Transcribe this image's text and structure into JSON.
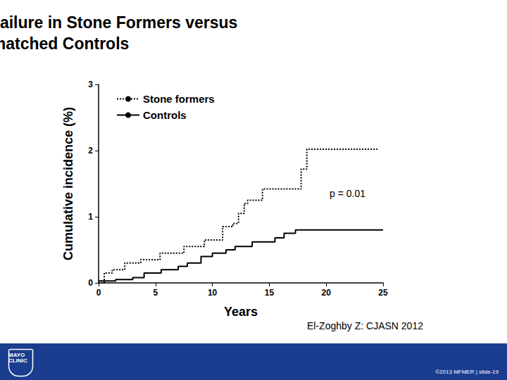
{
  "chart_data": {
    "type": "line",
    "title": "Incidence of Renal Failure in Stone Formers versus Age-matched Controls",
    "x_label": "Years",
    "y_label": "Cumulative incidence (%)",
    "annotations": [
      "p = 0.01",
      "El-Zoghby Z: CJASN 2012"
    ],
    "footer": [
      "MAYO CLINIC",
      "©2013 MFMER | slide-19"
    ],
    "series": [
      {
        "name": "Stone formers",
        "color": "#000000",
        "line_style": "dotted",
        "x": [
          0,
          0.5,
          1.2,
          2.3,
          3.7,
          5.4,
          7.5,
          9.3,
          10.9,
          11.8,
          12.3,
          12.8,
          13.1,
          14.4,
          17.8,
          18.3,
          24.5
        ],
        "values": [
          0,
          0.15,
          0.2,
          0.3,
          0.35,
          0.45,
          0.55,
          0.65,
          0.85,
          0.9,
          1.05,
          1.2,
          1.25,
          1.42,
          1.72,
          2.02,
          2.02
        ]
      },
      {
        "name": "Controls",
        "color": "#000000",
        "line_style": "solid",
        "x": [
          0,
          1.5,
          3,
          4,
          5.5,
          7,
          7.8,
          9,
          10,
          11.2,
          12,
          13.5,
          15.5,
          16.3,
          17.3,
          25
        ],
        "values": [
          0.03,
          0.05,
          0.08,
          0.15,
          0.2,
          0.25,
          0.3,
          0.4,
          0.45,
          0.5,
          0.55,
          0.62,
          0.68,
          0.75,
          0.8,
          0.8
        ]
      }
    ],
    "xlim": [
      0,
      25
    ],
    "xticks": [
      0,
      5,
      10,
      15,
      20,
      25
    ],
    "ylim": [
      0,
      3
    ],
    "yticks": [
      0,
      1,
      2,
      3
    ],
    "grid": false,
    "legend": "upper left"
  }
}
